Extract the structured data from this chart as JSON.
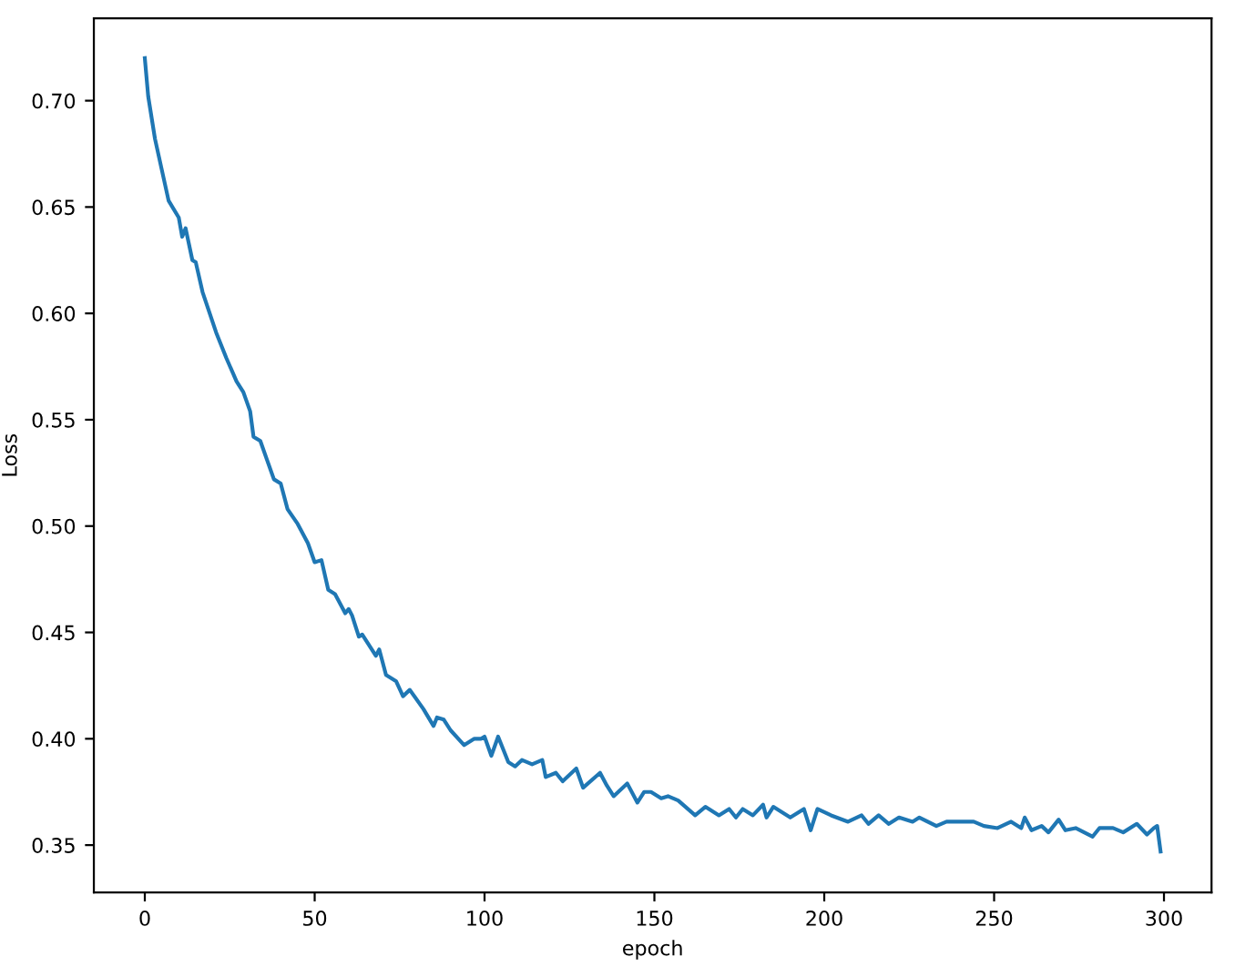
{
  "chart_data": {
    "type": "line",
    "xlabel": "epoch",
    "ylabel": "Loss",
    "xlim": [
      -15,
      314
    ],
    "xticks": [
      0,
      50,
      100,
      150,
      200,
      250,
      300
    ],
    "ylim": [
      0.3277,
      0.7387
    ],
    "yticks": [
      0.35,
      {
        "value": 0.4,
        "label": "0.40"
      },
      0.45,
      {
        "value": 0.5,
        "label": "0.50"
      },
      0.55,
      {
        "value": 0.6,
        "label": "0.60"
      },
      0.65,
      {
        "value": 0.7,
        "label": "0.70"
      }
    ],
    "grid": false,
    "legend": false,
    "series": [
      {
        "color": "#1f77b4",
        "x": [
          0,
          1,
          3,
          7,
          10,
          11,
          12,
          14,
          15,
          17,
          21,
          24,
          27,
          29,
          31,
          32,
          34,
          36,
          38,
          40,
          42,
          45,
          48,
          50,
          52,
          54,
          56,
          59,
          60,
          61,
          63,
          64,
          68,
          69,
          71,
          74,
          76,
          78,
          82,
          85,
          86,
          88,
          90,
          94,
          97,
          99,
          100,
          102,
          104,
          107,
          109,
          111,
          114,
          117,
          118,
          121,
          123,
          127,
          129,
          134,
          136,
          138,
          142,
          145,
          147,
          149,
          152,
          154,
          157,
          162,
          165,
          169,
          172,
          174,
          176,
          179,
          182,
          183,
          185,
          190,
          194,
          196,
          198,
          202,
          207,
          211,
          213,
          216,
          219,
          222,
          226,
          228,
          233,
          236,
          244,
          247,
          251,
          255,
          258,
          259,
          261,
          264,
          266,
          269,
          271,
          274,
          279,
          281,
          285,
          288,
          292,
          295,
          297,
          298,
          299
        ],
        "values": [
          0.72,
          0.702,
          0.682,
          0.653,
          0.645,
          0.636,
          0.64,
          0.625,
          0.624,
          0.61,
          0.591,
          0.579,
          0.568,
          0.563,
          0.554,
          0.542,
          0.54,
          0.531,
          0.522,
          0.52,
          0.508,
          0.501,
          0.492,
          0.483,
          0.484,
          0.47,
          0.468,
          0.459,
          0.461,
          0.458,
          0.448,
          0.449,
          0.439,
          0.442,
          0.43,
          0.427,
          0.42,
          0.423,
          0.414,
          0.406,
          0.41,
          0.409,
          0.404,
          0.397,
          0.4,
          0.4,
          0.401,
          0.392,
          0.401,
          0.389,
          0.387,
          0.39,
          0.388,
          0.39,
          0.382,
          0.384,
          0.38,
          0.386,
          0.377,
          0.384,
          0.378,
          0.373,
          0.379,
          0.37,
          0.375,
          0.375,
          0.372,
          0.373,
          0.371,
          0.364,
          0.368,
          0.364,
          0.367,
          0.363,
          0.367,
          0.364,
          0.369,
          0.363,
          0.368,
          0.363,
          0.367,
          0.357,
          0.367,
          0.364,
          0.361,
          0.364,
          0.36,
          0.364,
          0.36,
          0.363,
          0.361,
          0.363,
          0.359,
          0.361,
          0.361,
          0.359,
          0.358,
          0.361,
          0.358,
          0.363,
          0.357,
          0.359,
          0.356,
          0.362,
          0.357,
          0.358,
          0.354,
          0.358,
          0.358,
          0.356,
          0.36,
          0.355,
          0.358,
          0.359,
          0.347
        ]
      }
    ]
  }
}
